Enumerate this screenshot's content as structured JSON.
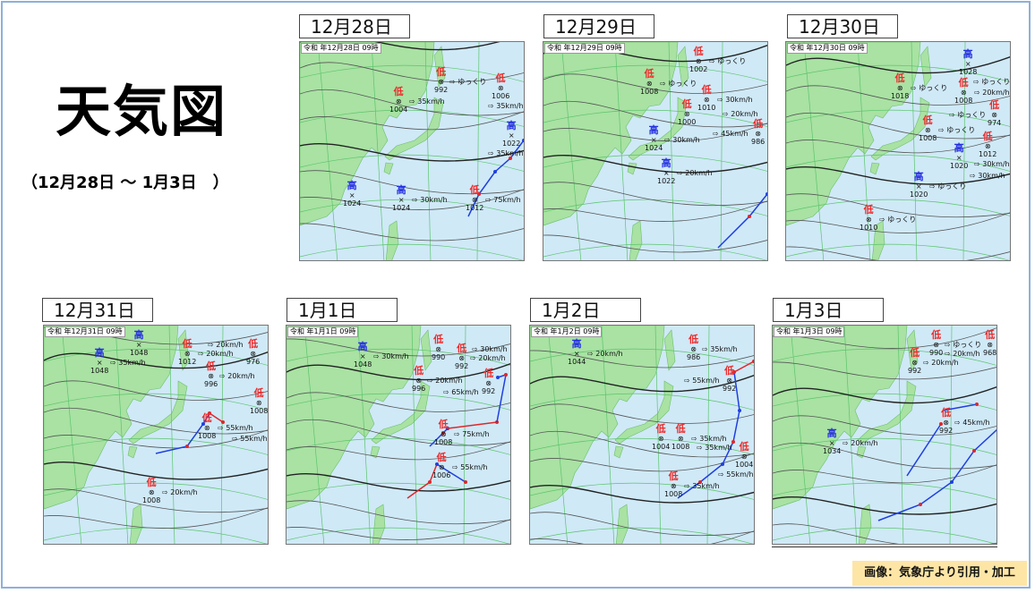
{
  "title": "天気図",
  "subtitle": "（12月28日 ～ 1月3日　）",
  "credit": "画像：気象庁より引用・加工",
  "colors": {
    "sea": "#cfe9f7",
    "land": "#a9e2a3",
    "low": "#ee2a2a",
    "high": "#2530e0",
    "warm_front": "#e0262a",
    "cold_front": "#1f3fe0",
    "occluded_front": "#d61fd6",
    "credit_bg": "#fde5a6"
  },
  "maps": [
    {
      "date": "12月28日",
      "header": "令和 年12月28日 09時",
      "systems": [
        {
          "kind": "低",
          "pressure": "1004",
          "speed": "35km/h"
        },
        {
          "kind": "低",
          "pressure": "992",
          "speed": "ゆっくり"
        },
        {
          "kind": "低",
          "pressure": "1006",
          "speed": "35km/h"
        },
        {
          "kind": "高",
          "pressure": "1022",
          "speed": "35km/h"
        },
        {
          "kind": "高",
          "pressure": "1024",
          "speed": "30km/h"
        },
        {
          "kind": "低",
          "pressure": "1012",
          "speed": "75km/h"
        },
        {
          "kind": "高",
          "pressure": "1024",
          "speed": ""
        }
      ]
    },
    {
      "date": "12月29日",
      "header": "令和 年12月29日 09時",
      "systems": [
        {
          "kind": "低",
          "pressure": "1008",
          "speed": "ゆっくり"
        },
        {
          "kind": "低",
          "pressure": "1010",
          "speed": "30km/h"
        },
        {
          "kind": "低",
          "pressure": "1002",
          "speed": "ゆっくり"
        },
        {
          "kind": "低",
          "pressure": "1000",
          "speed": "20km/h"
        },
        {
          "kind": "低",
          "pressure": "986",
          "speed": "45km/h"
        },
        {
          "kind": "高",
          "pressure": "1024",
          "speed": "30km/h"
        },
        {
          "kind": "高",
          "pressure": "1022",
          "speed": "20km/h"
        }
      ]
    },
    {
      "date": "12月30日",
      "header": "令和 年12月30日 09時",
      "systems": [
        {
          "kind": "低",
          "pressure": "1018",
          "speed": "ゆっくり"
        },
        {
          "kind": "低",
          "pressure": "1008",
          "speed": "20km/h"
        },
        {
          "kind": "高",
          "pressure": "1028",
          "speed": "ゆっくり"
        },
        {
          "kind": "低",
          "pressure": "974",
          "speed": "ゆっくり"
        },
        {
          "kind": "低",
          "pressure": "1008",
          "speed": "ゆっくり"
        },
        {
          "kind": "低",
          "pressure": "1012",
          "speed": "30km/h"
        },
        {
          "kind": "高",
          "pressure": "1020",
          "speed": "30km/h"
        },
        {
          "kind": "高",
          "pressure": "1020",
          "speed": "ゆっくり"
        },
        {
          "kind": "低",
          "pressure": "1010",
          "speed": "ゆっくり"
        }
      ]
    },
    {
      "date": "12月31日",
      "header": "令和 年12月31日 09時",
      "systems": [
        {
          "kind": "高",
          "pressure": "1048",
          "speed": ""
        },
        {
          "kind": "高",
          "pressure": "1048",
          "speed": "35km/h"
        },
        {
          "kind": "低",
          "pressure": "1012",
          "speed": "20km/h"
        },
        {
          "kind": "低",
          "pressure": "996",
          "speed": "20km/h"
        },
        {
          "kind": "低",
          "pressure": "976",
          "speed": "20km/h"
        },
        {
          "kind": "低",
          "pressure": "1008",
          "speed": "55km/h"
        },
        {
          "kind": "低",
          "pressure": "1008",
          "speed": "55km/h"
        },
        {
          "kind": "低",
          "pressure": "1008",
          "speed": "20km/h"
        }
      ]
    },
    {
      "date": "1月1日",
      "header": "令和 年1月1日 09時",
      "systems": [
        {
          "kind": "高",
          "pressure": "1048",
          "speed": "30km/h"
        },
        {
          "kind": "低",
          "pressure": "996",
          "speed": "20km/h"
        },
        {
          "kind": "低",
          "pressure": "992",
          "speed": "20km/h"
        },
        {
          "kind": "低",
          "pressure": "990",
          "speed": "30km/h"
        },
        {
          "kind": "低",
          "pressure": "992",
          "speed": "65km/h"
        },
        {
          "kind": "低",
          "pressure": "1008",
          "speed": "75km/h"
        },
        {
          "kind": "低",
          "pressure": "1006",
          "speed": "55km/h"
        }
      ]
    },
    {
      "date": "1月2日",
      "header": "令和 年1月2日 09時",
      "systems": [
        {
          "kind": "高",
          "pressure": "1044",
          "speed": "20km/h"
        },
        {
          "kind": "低",
          "pressure": "986",
          "speed": "35km/h"
        },
        {
          "kind": "低",
          "pressure": "992",
          "speed": "55km/h"
        },
        {
          "kind": "低",
          "pressure": "1008",
          "speed": "35km/h"
        },
        {
          "kind": "低",
          "pressure": "1004",
          "speed": "35km/h"
        },
        {
          "kind": "低",
          "pressure": "1004",
          "speed": "55km/h"
        },
        {
          "kind": "低",
          "pressure": "1008",
          "speed": "35km/h"
        }
      ]
    },
    {
      "date": "1月3日",
      "header": "令和 年1月3日 09時",
      "systems": [
        {
          "kind": "低",
          "pressure": "990",
          "speed": "ゆっくり"
        },
        {
          "kind": "低",
          "pressure": "968",
          "speed": "20km/h"
        },
        {
          "kind": "低",
          "pressure": "992",
          "speed": "20km/h"
        },
        {
          "kind": "低",
          "pressure": "992",
          "speed": "45km/h"
        },
        {
          "kind": "高",
          "pressure": "1034",
          "speed": "20km/h"
        }
      ]
    }
  ]
}
